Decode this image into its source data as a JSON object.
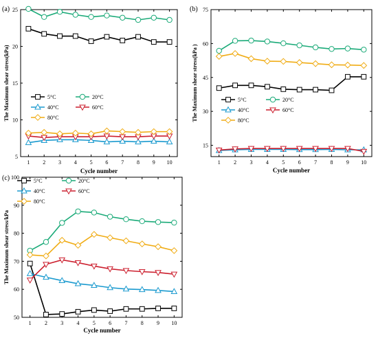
{
  "colors": {
    "c5": "#000000",
    "c20": "#1aaa78",
    "c40": "#1a9acf",
    "c60": "#cc1f2e",
    "c80": "#f0ac14"
  },
  "chart_data": [
    {
      "type": "line",
      "panel_label": "(a)",
      "xlabel": "Cycle number",
      "ylabel": "The Maximum shear stress(kPa)",
      "x": [
        1,
        2,
        3,
        4,
        5,
        6,
        7,
        8,
        9,
        10
      ],
      "xlim": [
        0.5,
        10.5
      ],
      "ylim": [
        5,
        25
      ],
      "yticks": [
        5,
        10,
        15,
        20,
        25
      ],
      "legend_position": "center",
      "series": [
        {
          "name": "5°C",
          "color_key": "c5",
          "marker": "square",
          "values": [
            22.4,
            21.7,
            21.4,
            21.4,
            20.7,
            21.3,
            20.8,
            21.3,
            20.6,
            20.6
          ]
        },
        {
          "name": "20°C",
          "color_key": "c20",
          "marker": "circle",
          "values": [
            25.1,
            24.0,
            24.7,
            24.3,
            24.0,
            24.2,
            23.9,
            23.6,
            23.9,
            23.6
          ]
        },
        {
          "name": "40°C",
          "color_key": "c40",
          "marker": "triangle-up",
          "values": [
            6.9,
            7.2,
            7.3,
            7.3,
            7.2,
            7.0,
            7.1,
            7.0,
            7.1,
            7.0
          ]
        },
        {
          "name": "60°C",
          "color_key": "c60",
          "marker": "triangle-down",
          "values": [
            7.8,
            7.6,
            7.7,
            7.7,
            7.7,
            7.8,
            7.7,
            7.7,
            7.8,
            7.8
          ]
        },
        {
          "name": "80°C",
          "color_key": "c80",
          "marker": "diamond",
          "values": [
            8.2,
            8.3,
            8.1,
            8.2,
            8.1,
            8.5,
            8.4,
            8.3,
            8.4,
            8.4
          ]
        }
      ]
    },
    {
      "type": "line",
      "panel_label": "(b)",
      "xlabel": "Cycle number",
      "ylabel": "The Maximum shear stress(kPa )",
      "x": [
        1,
        2,
        3,
        4,
        5,
        6,
        7,
        8,
        9,
        10
      ],
      "xlim": [
        0.5,
        10.5
      ],
      "ylim": [
        10,
        75
      ],
      "yticks": [
        15,
        30,
        45,
        60,
        75
      ],
      "legend_position": "center",
      "series": [
        {
          "name": "5°C",
          "color_key": "c5",
          "marker": "square",
          "values": [
            40.3,
            41.5,
            41.5,
            40.9,
            39.8,
            39.6,
            39.6,
            39.3,
            45.3,
            45.3
          ]
        },
        {
          "name": "20°C",
          "color_key": "c20",
          "marker": "circle",
          "values": [
            56.8,
            61.2,
            61.3,
            60.9,
            60.1,
            59.2,
            58.3,
            57.6,
            57.8,
            57.3
          ]
        },
        {
          "name": "40°C",
          "color_key": "c40",
          "marker": "triangle-up",
          "values": [
            12.7,
            13.0,
            13.2,
            13.2,
            13.2,
            13.1,
            13.1,
            13.2,
            13.0,
            13.0
          ]
        },
        {
          "name": "60°C",
          "color_key": "c60",
          "marker": "triangle-down",
          "values": [
            12.9,
            13.4,
            13.6,
            13.6,
            13.6,
            13.6,
            13.6,
            13.6,
            13.6,
            12.3
          ]
        },
        {
          "name": "80°C",
          "color_key": "c80",
          "marker": "diamond",
          "values": [
            54.3,
            55.6,
            53.3,
            52.2,
            52.1,
            51.6,
            51.1,
            50.6,
            50.5,
            50.3
          ]
        }
      ]
    },
    {
      "type": "line",
      "panel_label": "(c)",
      "xlabel": "Cycle number",
      "ylabel": "The Maximum shear stress/kPa",
      "x": [
        1,
        2,
        3,
        4,
        5,
        6,
        7,
        8,
        9,
        10
      ],
      "xlim": [
        0.5,
        10.5
      ],
      "ylim": [
        50,
        100
      ],
      "yticks": [
        50,
        60,
        70,
        80,
        90,
        100
      ],
      "legend_position": "top-left",
      "series": [
        {
          "name": "5°C",
          "color_key": "c5",
          "marker": "square",
          "values": [
            69.2,
            51.0,
            51.2,
            52.0,
            52.6,
            52.2,
            53.0,
            53.0,
            53.2,
            53.2
          ]
        },
        {
          "name": "20°C",
          "color_key": "c20",
          "marker": "circle",
          "values": [
            73.8,
            76.9,
            83.7,
            87.8,
            87.4,
            85.9,
            85.0,
            84.3,
            84.0,
            83.8
          ]
        },
        {
          "name": "40°C",
          "color_key": "c40",
          "marker": "triangle-up",
          "values": [
            65.6,
            64.3,
            63.1,
            62.0,
            61.4,
            60.6,
            60.1,
            59.9,
            59.6,
            59.2
          ]
        },
        {
          "name": "60°C",
          "color_key": "c60",
          "marker": "triangle-down",
          "values": [
            63.3,
            68.9,
            70.5,
            69.5,
            68.3,
            67.3,
            66.7,
            66.3,
            66.0,
            65.4
          ]
        },
        {
          "name": "80°C",
          "color_key": "c80",
          "marker": "diamond",
          "values": [
            72.3,
            71.9,
            77.5,
            75.7,
            79.6,
            78.4,
            77.3,
            76.2,
            75.2,
            73.8
          ]
        }
      ]
    }
  ]
}
